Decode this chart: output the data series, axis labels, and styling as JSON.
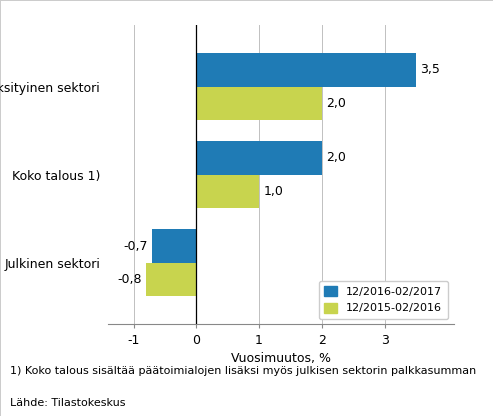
{
  "categories": [
    "Julkinen sektori",
    "Koko talous 1)",
    "Yksityinen sektori"
  ],
  "series_2017": [
    -0.7,
    2.0,
    3.5
  ],
  "series_2016": [
    -0.8,
    1.0,
    2.0
  ],
  "labels_2017": [
    "-0,7",
    "2,0",
    "3,5"
  ],
  "labels_2016": [
    "-0,8",
    "1,0",
    "2,0"
  ],
  "color_2017": "#1f7bb5",
  "color_2016": "#c8d44e",
  "xlabel": "Vuosimuutos, %",
  "legend_2017": "12/2016-02/2017",
  "legend_2016": "12/2015-02/2016",
  "xlim": [
    -1.4,
    4.1
  ],
  "xticks": [
    -1,
    0,
    1,
    2,
    3
  ],
  "xtick_labels": [
    "-1",
    "0",
    "1",
    "2",
    "3"
  ],
  "footnote1": "1) Koko talous sisältää päätoimialojen lisäksi myös julkisen sektorin palkkasumman",
  "footnote2": "Lähde: Tilastokeskus",
  "bar_height": 0.38,
  "label_fontsize": 9,
  "tick_fontsize": 9,
  "xlabel_fontsize": 9,
  "legend_fontsize": 8,
  "footnote_fontsize": 8
}
